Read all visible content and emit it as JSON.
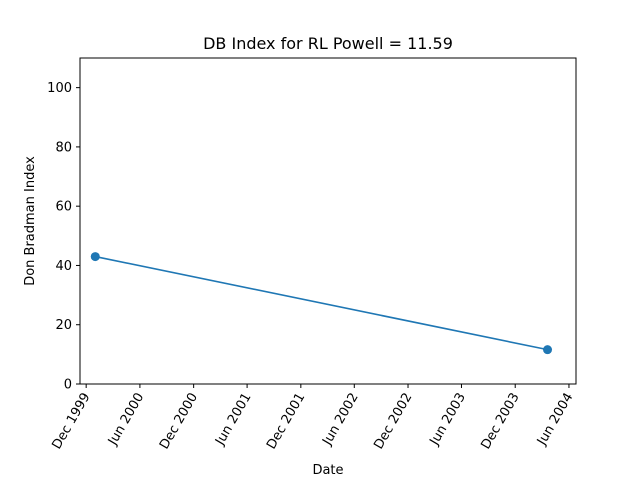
{
  "chart_data": {
    "type": "line",
    "title": "DB Index for RL Powell = 11.59",
    "xlabel": "Date",
    "ylabel": "Don Bradman Index",
    "ylim": [
      0,
      110
    ],
    "yticks": [
      0,
      20,
      40,
      60,
      80,
      100
    ],
    "xlim": [
      "1999-11-10",
      "2004-06-25"
    ],
    "xticks": [
      {
        "date": "1999-12-01",
        "label": "Dec 1999"
      },
      {
        "date": "2000-06-01",
        "label": "Jun 2000"
      },
      {
        "date": "2000-12-01",
        "label": "Dec 2000"
      },
      {
        "date": "2001-06-01",
        "label": "Jun 2001"
      },
      {
        "date": "2001-12-01",
        "label": "Dec 2001"
      },
      {
        "date": "2002-06-01",
        "label": "Jun 2002"
      },
      {
        "date": "2002-12-01",
        "label": "Dec 2002"
      },
      {
        "date": "2003-06-01",
        "label": "Jun 2003"
      },
      {
        "date": "2003-12-01",
        "label": "Dec 2003"
      },
      {
        "date": "2004-06-01",
        "label": "Jun 2004"
      }
    ],
    "series": [
      {
        "color": "#1f77b4",
        "marker": "circle",
        "points": [
          {
            "x": "2000-01-01",
            "y": 43
          },
          {
            "x": "2004-03-20",
            "y": 11.59
          }
        ]
      }
    ],
    "grid": false,
    "legend": "none"
  }
}
